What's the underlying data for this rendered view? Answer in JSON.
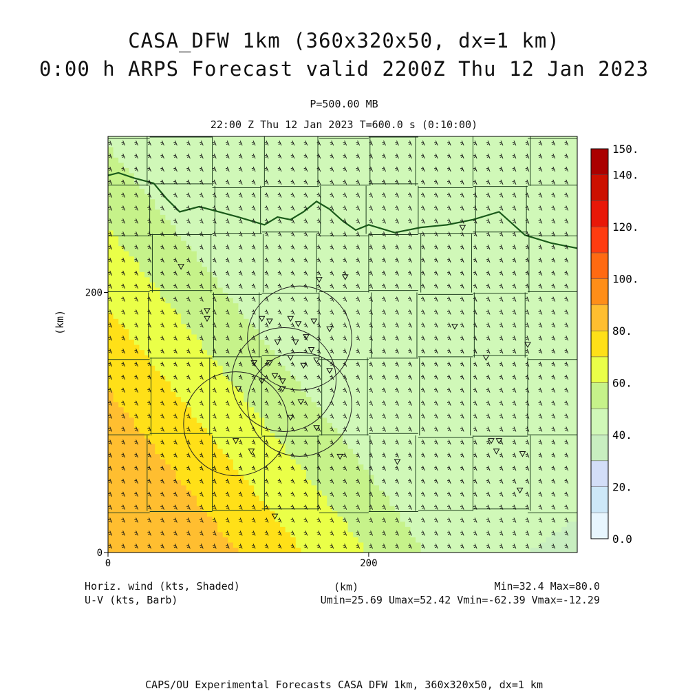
{
  "header": {
    "title_line1": "CASA_DFW 1km (360x320x50, dx=1 km)",
    "title_line2": "0:00 h ARPS Forecast valid 2200Z Thu 12 Jan 2023",
    "level": "P=500.00 MB",
    "time_info": "22:00 Z Thu 12 Jan 2023    T=600.0 s (0:10:00)"
  },
  "chart_data": {
    "type": "heatmap",
    "field": "Horizontal wind speed at 500 mb with U-V wind barbs",
    "xlabel": "(km)",
    "ylabel": "(km)",
    "xlim": [
      0,
      360
    ],
    "ylim": [
      0,
      320
    ],
    "x_ticks": [
      0,
      200
    ],
    "y_ticks": [
      0,
      200
    ],
    "colorbar": {
      "levels": [
        0,
        10,
        20,
        30,
        40,
        50,
        60,
        70,
        80,
        90,
        100,
        110,
        120,
        130,
        140,
        150
      ],
      "labels": [
        "0.0",
        "20.",
        "40.",
        "60.",
        "80.",
        "100.",
        "120.",
        "140.",
        "150."
      ],
      "label_values": [
        0,
        20,
        40,
        60,
        80,
        100,
        120,
        140,
        150
      ],
      "colors": [
        "#e8f6fe",
        "#cde8f8",
        "#d3def8",
        "#c8eec0",
        "#d0f8b8",
        "#c6f28a",
        "#eaff48",
        "#ffe018",
        "#ffbe30",
        "#ff8e18",
        "#ff6a12",
        "#ff3c10",
        "#e81808",
        "#cc1000",
        "#aa0000"
      ]
    },
    "stats": {
      "min": 32.4,
      "max": 80.0,
      "umin": 25.69,
      "umax": 52.42,
      "vmin": -62.39,
      "vmax": -12.29
    },
    "radar_rings": [
      {
        "cx_km": 147,
        "cy_km": 165,
        "r_km": 40
      },
      {
        "cx_km": 135,
        "cy_km": 133,
        "r_km": 40
      },
      {
        "cx_km": 147,
        "cy_km": 114,
        "r_km": 40
      },
      {
        "cx_km": 98,
        "cy_km": 99,
        "r_km": 40
      }
    ]
  },
  "footer": {
    "field_label": "Horiz. wind (kts, Shaded)",
    "vector_label": "U-V (kts, Barb)",
    "xaxis_label": "(km)",
    "min_max": "Min=32.4 Max=80.0",
    "uv_stats": "Umin=25.69 Umax=52.42 Vmin=-62.39 Vmax=-12.29",
    "credit": "CAPS/OU Experimental Forecasts  CASA DFW 1km, 360x320x50, dx=1 km"
  }
}
